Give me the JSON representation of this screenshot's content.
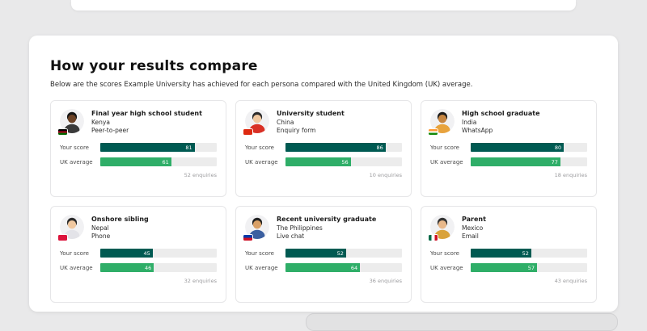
{
  "page": {
    "title": "How your results compare",
    "subtitle": "Below are the scores Example University has achieved for each persona compared with the United Kingdom (UK) average."
  },
  "labels": {
    "your_score": "Your score",
    "uk_average": "UK average"
  },
  "colors": {
    "your_score": "#005a52",
    "uk_average": "#2fae68",
    "track": "#ececec"
  },
  "personas": [
    {
      "name": "Final year high school student",
      "country": "Kenya",
      "channel": "Peer-to-peer",
      "your_score": 81,
      "uk_average": 61,
      "enquiries": "52 enquiries",
      "avatar": {
        "skin": "#6b4226",
        "hair": "#161616",
        "shirt": "#3a3a3a"
      },
      "flag": {
        "dir": "to bottom",
        "colors": [
          "#000000",
          "#b00020",
          "#006600"
        ]
      }
    },
    {
      "name": "University student",
      "country": "China",
      "channel": "Enquiry form",
      "your_score": 86,
      "uk_average": 56,
      "enquiries": "10 enquiries",
      "avatar": {
        "skin": "#f0c8a0",
        "hair": "#2b2b2b",
        "shirt": "#d93025"
      },
      "flag": {
        "dir": "to bottom",
        "colors": [
          "#de2910",
          "#de2910"
        ]
      }
    },
    {
      "name": "High school graduate",
      "country": "India",
      "channel": "WhatsApp",
      "your_score": 80,
      "uk_average": 77,
      "enquiries": "18 enquiries",
      "avatar": {
        "skin": "#c68642",
        "hair": "#1c1c1c",
        "shirt": "#e8a33d"
      },
      "flag": {
        "dir": "to bottom",
        "colors": [
          "#ff9933",
          "#ffffff",
          "#138808"
        ]
      }
    },
    {
      "name": "Onshore sibling",
      "country": "Nepal",
      "channel": "Phone",
      "your_score": 45,
      "uk_average": 46,
      "enquiries": "32 enquiries",
      "avatar": {
        "skin": "#f0c8a0",
        "hair": "#2b2b2b",
        "shirt": "#e3e3e8"
      },
      "flag": {
        "dir": "to bottom",
        "colors": [
          "#dc143c",
          "#dc143c"
        ]
      }
    },
    {
      "name": "Recent university graduate",
      "country": "The Philippines",
      "channel": "Live chat",
      "your_score": 52,
      "uk_average": 64,
      "enquiries": "36 enquiries",
      "avatar": {
        "skin": "#d9a066",
        "hair": "#222222",
        "shirt": "#3b5fa0"
      },
      "flag": {
        "dir": "to bottom",
        "colors": [
          "#0038a8",
          "#ce1126"
        ]
      }
    },
    {
      "name": "Parent",
      "country": "Mexico",
      "channel": "Email",
      "your_score": 52,
      "uk_average": 57,
      "enquiries": "43 enquiries",
      "avatar": {
        "skin": "#e8b88a",
        "hair": "#333333",
        "shirt": "#d9a23a"
      },
      "flag": {
        "dir": "to right",
        "colors": [
          "#006847",
          "#ffffff",
          "#ce1126"
        ]
      }
    }
  ]
}
